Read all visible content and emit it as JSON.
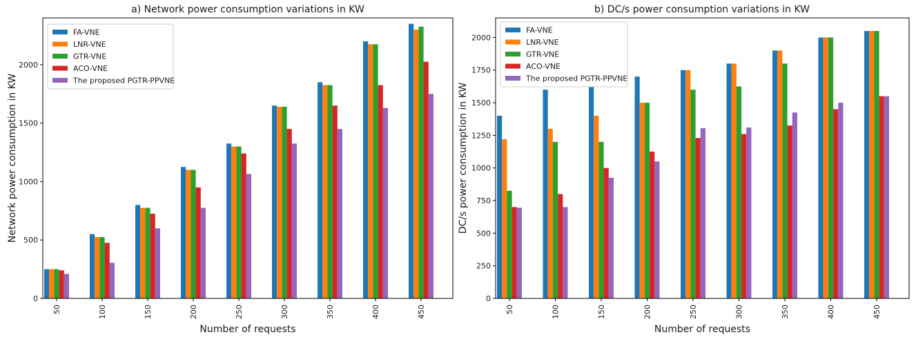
{
  "series_colors": [
    "#1f77b4",
    "#ff7f0e",
    "#2ca02c",
    "#d62728",
    "#9467bd"
  ],
  "chart_data": [
    {
      "type": "bar",
      "title": "a) Network power consumption variations in KW",
      "xlabel": "Number of requests",
      "ylabel": "Network power consumption in KW",
      "categories": [
        "50",
        "100",
        "150",
        "200",
        "250",
        "300",
        "350",
        "400",
        "450"
      ],
      "ylim": [
        0,
        2400
      ],
      "yticks": [
        0,
        500,
        1000,
        1500,
        2000
      ],
      "legend_position": "top-left",
      "grid": false,
      "series": [
        {
          "name": "FA-VNE",
          "values": [
            250,
            550,
            800,
            1125,
            1325,
            1650,
            1850,
            2200,
            2350
          ]
        },
        {
          "name": "LNR-VNE",
          "values": [
            250,
            525,
            775,
            1100,
            1300,
            1640,
            1825,
            2175,
            2300
          ]
        },
        {
          "name": "GTR-VNE",
          "values": [
            250,
            525,
            775,
            1100,
            1300,
            1640,
            1825,
            2175,
            2325
          ]
        },
        {
          "name": "ACO-VNE",
          "values": [
            240,
            475,
            725,
            950,
            1240,
            1450,
            1650,
            1825,
            2025
          ]
        },
        {
          "name": "The proposed PGTR-PPVNE",
          "values": [
            210,
            305,
            600,
            775,
            1065,
            1325,
            1450,
            1630,
            1750
          ]
        }
      ]
    },
    {
      "type": "bar",
      "title": "b) DC/s power consumption variations in KW",
      "xlabel": "Number of requests",
      "ylabel": "DC/s power consumption in KW",
      "categories": [
        "50",
        "100",
        "150",
        "200",
        "250",
        "300",
        "350",
        "400",
        "450"
      ],
      "ylim": [
        0,
        2150
      ],
      "yticks": [
        0,
        250,
        500,
        750,
        1000,
        1250,
        1500,
        1750,
        2000
      ],
      "legend_position": "top-left",
      "grid": false,
      "series": [
        {
          "name": "FA-VNE",
          "values": [
            1400,
            1600,
            1650,
            1700,
            1750,
            1800,
            1900,
            2000,
            2050
          ]
        },
        {
          "name": "LNR-VNE",
          "values": [
            1220,
            1300,
            1400,
            1500,
            1750,
            1800,
            1900,
            2000,
            2050
          ]
        },
        {
          "name": "GTR-VNE",
          "values": [
            825,
            1200,
            1200,
            1500,
            1600,
            1625,
            1800,
            2000,
            2050
          ]
        },
        {
          "name": "ACO-VNE",
          "values": [
            700,
            800,
            1000,
            1125,
            1230,
            1260,
            1325,
            1450,
            1550
          ]
        },
        {
          "name": "The proposed PGTR-PPVNE",
          "values": [
            695,
            700,
            925,
            1050,
            1305,
            1310,
            1425,
            1500,
            1550
          ]
        }
      ]
    }
  ]
}
